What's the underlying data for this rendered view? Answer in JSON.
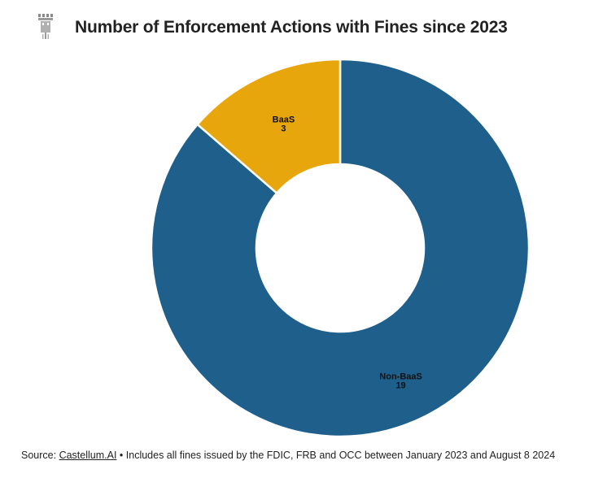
{
  "title": "Number of Enforcement Actions with Fines since 2023",
  "logo": {
    "icon": "castle-tower-icon"
  },
  "chart_data": {
    "type": "pie",
    "donut": true,
    "slices": [
      {
        "label": "Non-BaaS",
        "value": 19,
        "color": "#1e5f8c"
      },
      {
        "label": "BaaS",
        "value": 3,
        "color": "#e8a60d"
      }
    ]
  },
  "footer": {
    "source_label": "Source:",
    "source_link": "Castellum.AI",
    "note": "• Includes all fines issued by the FDIC, FRB and OCC between January 2023 and August 8 2024"
  }
}
